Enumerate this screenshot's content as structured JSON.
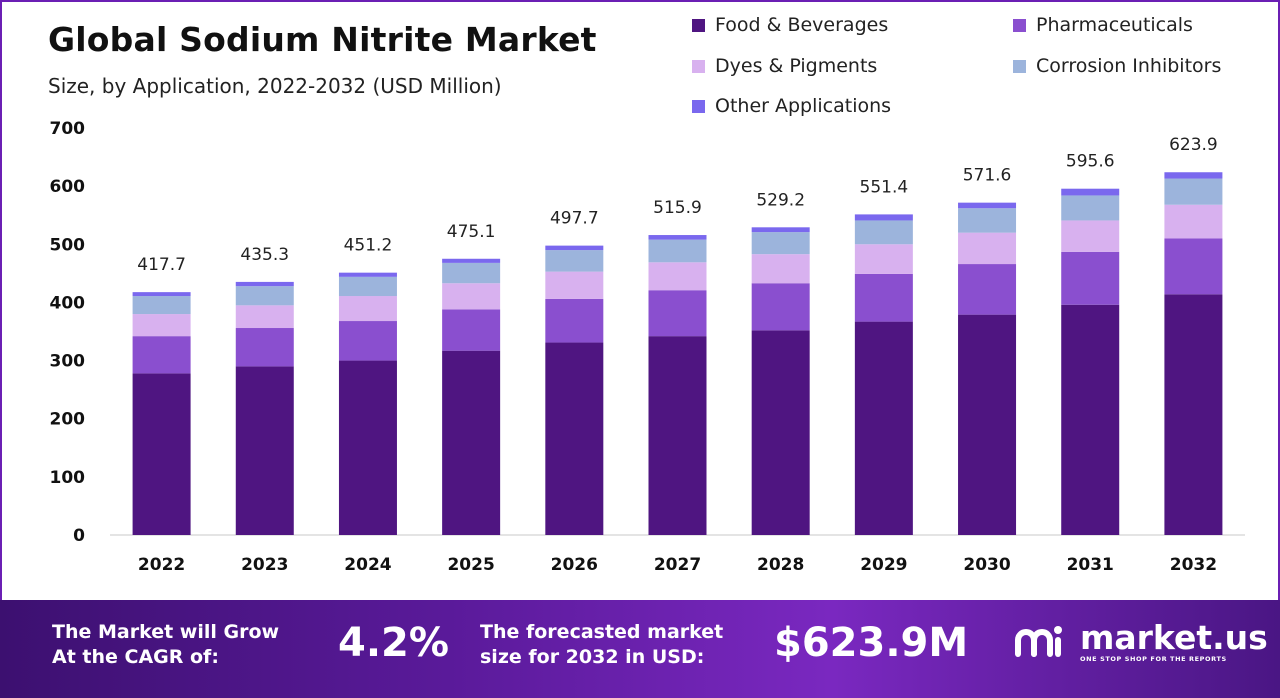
{
  "header": {
    "title": "Global Sodium Nitrite Market",
    "subtitle": "Size, by Application, 2022-2032 (USD Million)"
  },
  "legend": [
    {
      "label": "Food & Beverages",
      "color": "#4f1581"
    },
    {
      "label": "Pharmaceuticals",
      "color": "#8a4fcf"
    },
    {
      "label": "Dyes & Pigments",
      "color": "#d8b1ef"
    },
    {
      "label": "Corrosion Inhibitors",
      "color": "#9cb4dc"
    },
    {
      "label": "Other Applications",
      "color": "#7a68ee"
    }
  ],
  "chart_data": {
    "type": "bar",
    "stacked": true,
    "title": "Global Sodium Nitrite Market",
    "subtitle": "Size, by Application, 2022-2032 (USD Million)",
    "xlabel": "",
    "ylabel": "",
    "ylim": [
      0,
      700
    ],
    "yticks": [
      "0",
      "100",
      "200",
      "300",
      "400",
      "500",
      "600",
      "700"
    ],
    "categories": [
      "2022",
      "2023",
      "2024",
      "2025",
      "2026",
      "2027",
      "2028",
      "2029",
      "2030",
      "2031",
      "2032"
    ],
    "series": [
      {
        "name": "Food & Beverages",
        "values": [
          278,
          290,
          300,
          317,
          331,
          342,
          352,
          367,
          379,
          396,
          414
        ],
        "color": "#4f1581"
      },
      {
        "name": "Pharmaceuticals",
        "values": [
          64,
          66,
          68,
          71,
          75,
          79,
          81,
          82,
          87,
          91,
          96
        ],
        "color": "#8a4fcf"
      },
      {
        "name": "Dyes & Pigments",
        "values": [
          38,
          39,
          43,
          45,
          47,
          48,
          50,
          51,
          54,
          54,
          58
        ],
        "color": "#d8b1ef"
      },
      {
        "name": "Corrosion Inhibitors",
        "values": [
          31,
          33,
          33,
          35,
          37,
          39,
          38,
          41,
          42,
          43,
          45
        ],
        "color": "#9cb4dc"
      },
      {
        "name": "Other Applications",
        "values": [
          6.7,
          7.3,
          7.2,
          7.1,
          7.7,
          7.9,
          8.2,
          10.4,
          9.6,
          11.6,
          10.9
        ],
        "color": "#7a68ee"
      }
    ],
    "totals": [
      417.7,
      435.3,
      451.2,
      475.1,
      497.7,
      515.9,
      529.2,
      551.4,
      571.6,
      595.6,
      623.9
    ],
    "total_labels": [
      "417.7",
      "435.3",
      "451.2",
      "475.1",
      "497.7",
      "515.9",
      "529.2",
      "551.4",
      "571.6",
      "595.6",
      "623.9"
    ],
    "grid": false,
    "legend_position": "top-right"
  },
  "footer": {
    "cagr_label_line1": "The Market will Grow",
    "cagr_label_line2": "At the CAGR of:",
    "cagr_value": "4.2%",
    "forecast_label_line1": "The forecasted market",
    "forecast_label_line2": "size for 2032 in USD:",
    "forecast_value": "$623.9M",
    "brand_name": "market.us",
    "brand_tagline": "ONE STOP SHOP FOR THE REPORTS"
  }
}
